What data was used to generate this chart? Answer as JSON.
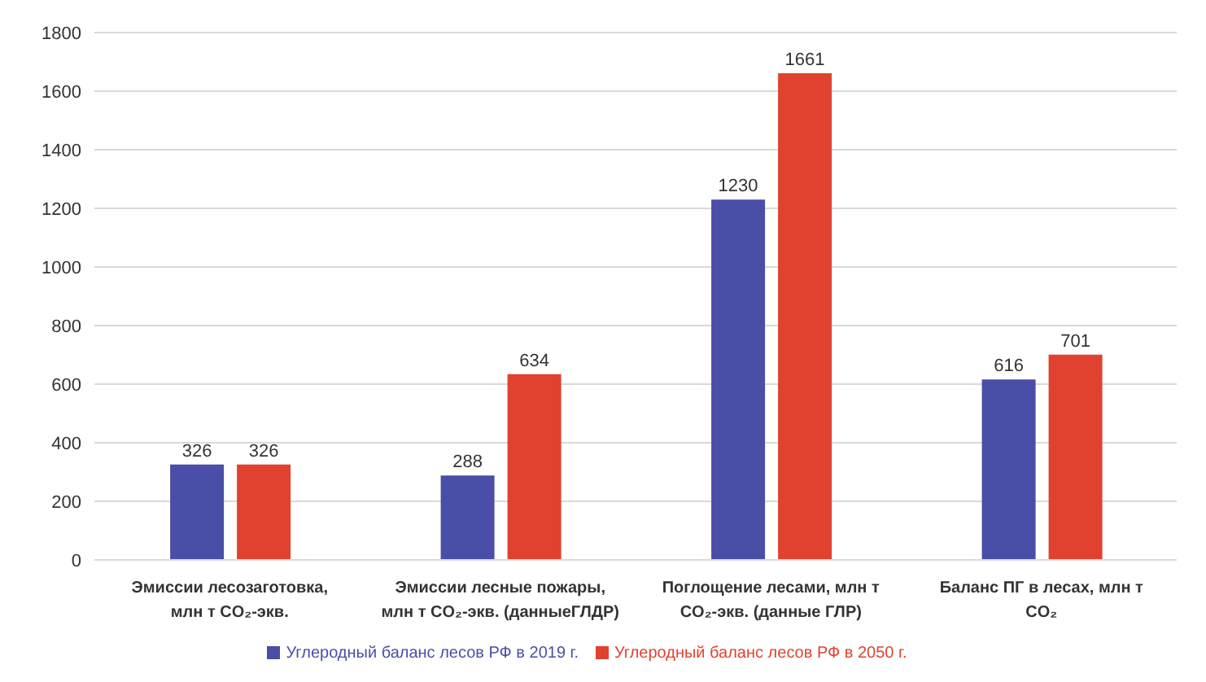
{
  "chart_data": {
    "type": "bar",
    "categories": [
      "Эмиссии лесозаготовка,\nмлн т CO₂-экв.",
      "Эмиссии лесные пожары,\nмлн т CO₂-экв. (данныеГЛДР)",
      "Поглощение лесами, млн т\nCO₂-экв. (данные ГЛР)",
      "Баланс ПГ в лесах, млн т\nCO₂"
    ],
    "series": [
      {
        "name": "Углеродный баланс лесов РФ в 2019 г.",
        "color": "#4a4ea6",
        "values": [
          326,
          288,
          1230,
          616
        ]
      },
      {
        "name": "Углеродный баланс лесов РФ в 2050 г.",
        "color": "#e0422f",
        "values": [
          326,
          634,
          1661,
          701
        ]
      }
    ],
    "ylim": [
      0,
      1800
    ],
    "yticks": [
      0,
      200,
      400,
      600,
      800,
      1000,
      1200,
      1400,
      1600,
      1800
    ],
    "grid": "y",
    "legend": "bottom",
    "data_labels": true
  }
}
